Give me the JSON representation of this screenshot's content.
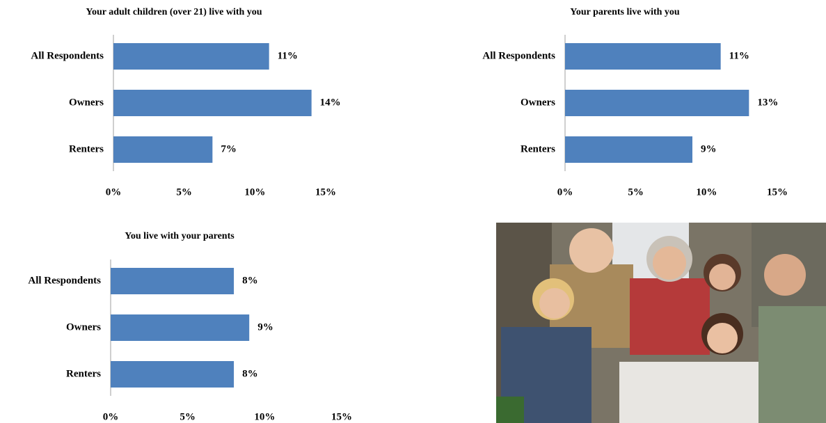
{
  "chart_data": [
    {
      "type": "bar",
      "orientation": "horizontal",
      "title": "Your adult children (over 21) live  with you",
      "categories": [
        "All Respondents",
        "Owners",
        "Renters"
      ],
      "values": [
        11,
        14,
        7
      ],
      "value_labels": [
        "11%",
        "14%",
        "7%"
      ],
      "color": "#4f81bd",
      "xlim": [
        0,
        15
      ],
      "xticks": [
        {
          "value": 0,
          "label": "0%"
        },
        {
          "value": 5,
          "label": "5%"
        },
        {
          "value": 10,
          "label": "10%"
        },
        {
          "value": 15,
          "label": "15%"
        }
      ]
    },
    {
      "type": "bar",
      "orientation": "horizontal",
      "title": "Your parents live  with you",
      "categories": [
        "All Respondents",
        "Owners",
        "Renters"
      ],
      "values": [
        11,
        13,
        9
      ],
      "value_labels": [
        "11%",
        "13%",
        "9%"
      ],
      "color": "#4f81bd",
      "xlim": [
        0,
        15
      ],
      "xticks": [
        {
          "value": 0,
          "label": "0%"
        },
        {
          "value": 5,
          "label": "5%"
        },
        {
          "value": 10,
          "label": "10%"
        },
        {
          "value": 15,
          "label": "15%"
        }
      ]
    },
    {
      "type": "bar",
      "orientation": "horizontal",
      "title": "You live with your parents",
      "categories": [
        "All Respondents",
        "Owners",
        "Renters"
      ],
      "values": [
        8,
        9,
        8
      ],
      "value_labels": [
        "8%",
        "9%",
        "8%"
      ],
      "color": "#4f81bd",
      "xlim": [
        0,
        15
      ],
      "xticks": [
        {
          "value": 0,
          "label": "0%"
        },
        {
          "value": 5,
          "label": "5%"
        },
        {
          "value": 10,
          "label": "10%"
        },
        {
          "value": 15,
          "label": "15%"
        }
      ]
    }
  ]
}
